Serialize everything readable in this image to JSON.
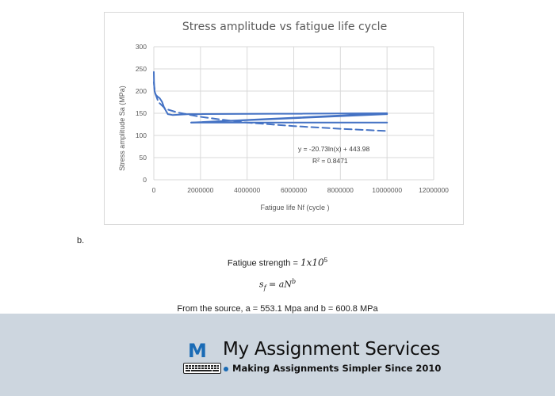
{
  "chart_data": {
    "type": "line",
    "title": "Stress amplitude vs fatigue life cycle",
    "xlabel": "Fatigue life Nf  (cycle )",
    "ylabel": "Stress amplitude Sa (MPa)",
    "xlim": [
      0,
      12000000
    ],
    "ylim": [
      0,
      300
    ],
    "xticks": [
      "0",
      "2000000",
      "4000000",
      "6000000",
      "8000000",
      "10000000",
      "12000000"
    ],
    "yticks": [
      "0",
      "50",
      "100",
      "150",
      "200",
      "250",
      "300"
    ],
    "grid": "vertical and horizontal",
    "legend": "none",
    "series": [
      {
        "style": "solid",
        "color": "#4472c4",
        "x": [
          0,
          10000,
          30000,
          80000,
          150000,
          250000,
          350000,
          450000,
          600000,
          800000,
          1500000,
          10000000,
          1600000,
          10000000,
          10000000
        ],
        "y": [
          243,
          215,
          200,
          192,
          188,
          184,
          176,
          162,
          148,
          146,
          148,
          150,
          129,
          148,
          148
        ]
      },
      {
        "style": "dashed",
        "color": "#4472c4",
        "x": [
          0,
          50000,
          200000,
          500000,
          1000000,
          2000000,
          3000000,
          4000000,
          6000000,
          8000000,
          10000000
        ],
        "y": [
          220,
          196,
          175,
          160,
          152,
          142,
          135,
          129,
          121,
          115,
          110
        ]
      },
      {
        "style": "solid",
        "color": "#4472c4",
        "x": [
          1600000,
          10000000
        ],
        "y": [
          129,
          129
        ]
      }
    ],
    "annotations": {
      "equation": "y = -20.73ln(x) + 443.98",
      "r_squared": "R² = 0.8471"
    }
  },
  "content": {
    "part_label": "b.",
    "strength_label": "Fatigue strength = ",
    "strength_value": "1x10",
    "strength_exponent": "5",
    "formula_left": "s",
    "formula_sub": "f",
    "formula_mid": " = aN",
    "formula_exp": "b",
    "source_text": "From the source, a = 553.1 Mpa and b = 600.8 MPa"
  },
  "footer": {
    "logo_letter": "M",
    "brand_name": "My Assignment Services",
    "tagline": "Making Assignments Simpler Since 2010",
    "brand_color": "#1a6bb5",
    "band_color": "#cdd6df"
  }
}
